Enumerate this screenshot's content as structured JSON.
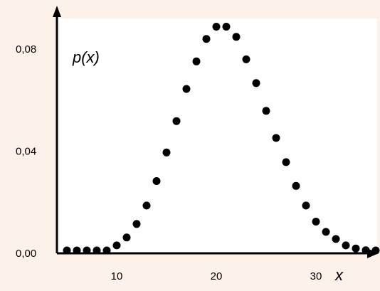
{
  "chart_data": {
    "type": "scatter",
    "title": "",
    "xlabel": "x",
    "ylabel": "p(x)",
    "xlim": [
      4,
      36
    ],
    "ylim": [
      0,
      0.092
    ],
    "grid": false,
    "legend": "none",
    "x_ticks": [
      {
        "value": 10,
        "label": "10"
      },
      {
        "value": 20,
        "label": "20"
      },
      {
        "value": 30,
        "label": "30"
      }
    ],
    "y_ticks": [
      {
        "value": 0.0,
        "label": "0,00"
      },
      {
        "value": 0.04,
        "label": "0,04"
      },
      {
        "value": 0.08,
        "label": "0,08"
      }
    ],
    "series": [
      {
        "color": "#000000",
        "x": [
          5,
          6,
          7,
          8,
          9,
          10,
          11,
          12,
          13,
          14,
          15,
          16,
          17,
          18,
          19,
          20,
          21,
          22,
          23,
          24,
          25,
          26,
          27,
          28,
          29,
          30,
          31,
          32,
          33,
          34,
          35,
          36
        ],
        "y": [
          0.0003,
          0.0003,
          0.0003,
          0.0003,
          0.0009,
          0.0031,
          0.0062,
          0.0115,
          0.0187,
          0.0283,
          0.0395,
          0.0518,
          0.0644,
          0.0752,
          0.084,
          0.0888,
          0.0888,
          0.0848,
          0.076,
          0.0667,
          0.0558,
          0.0452,
          0.0357,
          0.0264,
          0.0187,
          0.0124,
          0.0084,
          0.0056,
          0.0031,
          0.0019,
          0.0012,
          0.0006
        ]
      }
    ]
  }
}
